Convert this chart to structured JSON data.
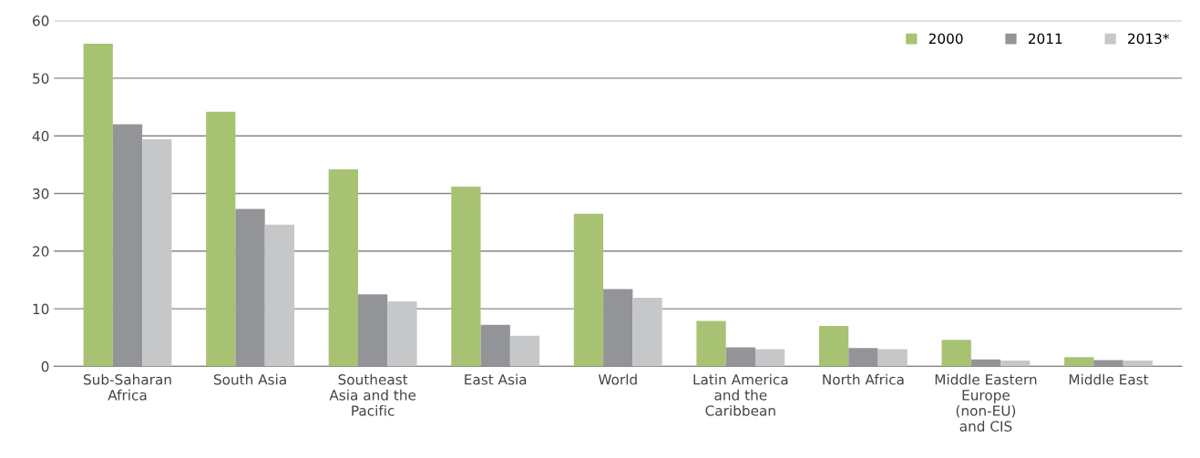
{
  "chart_data": {
    "type": "bar",
    "categories": [
      "Sub-Saharan\nAfrica",
      "South Asia",
      "Southeast\nAsia and the\nPacific",
      "East Asia",
      "World",
      "Latin America\nand the\nCaribbean",
      "North Africa",
      "Middle Eastern\nEurope\n(non-EU)\nand CIS",
      "Middle East"
    ],
    "series": [
      {
        "name": "2000",
        "color": "#a8c273",
        "values": [
          56,
          44.2,
          34.2,
          31.2,
          26.5,
          7.9,
          7.0,
          4.6,
          1.6
        ]
      },
      {
        "name": "2011",
        "color": "#939497",
        "values": [
          42,
          27.3,
          12.5,
          7.2,
          13.4,
          3.3,
          3.2,
          1.2,
          1.1
        ]
      },
      {
        "name": "2013*",
        "color": "#c6c7c9",
        "values": [
          39.4,
          24.6,
          11.3,
          5.3,
          11.9,
          3.0,
          3.0,
          1.0,
          1.0
        ]
      }
    ],
    "ylim": [
      0,
      60
    ],
    "yticks": [
      0,
      10,
      20,
      30,
      40,
      50,
      60
    ],
    "grid": "y",
    "legend": "top right"
  }
}
